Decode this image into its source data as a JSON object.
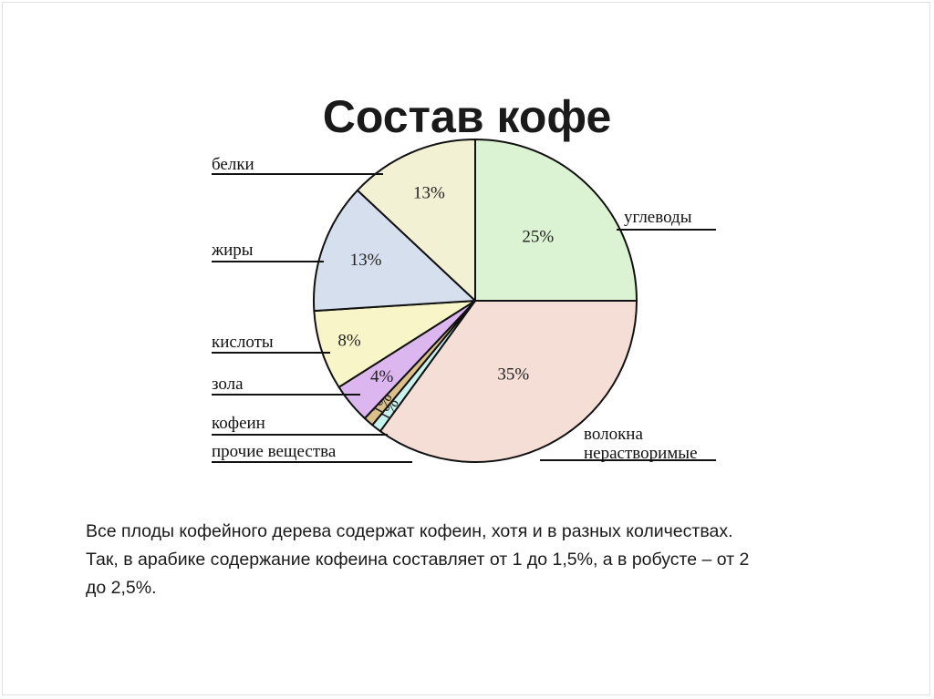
{
  "title": "Состав кофе",
  "chart_data": {
    "type": "pie",
    "title": "",
    "categories": [
      "углеводы",
      "волокна нерастворимые",
      "прочие вещества",
      "кофеин",
      "зола",
      "кислоты",
      "жиры",
      "белки"
    ],
    "values": [
      25,
      35,
      1,
      1,
      4,
      8,
      13,
      13
    ],
    "value_labels": [
      "25%",
      "35%",
      "1%",
      "1%",
      "4%",
      "8%",
      "13%",
      "13%"
    ],
    "label_lines": [
      [
        "углеводы"
      ],
      [
        "волокна",
        "нерастворимые"
      ],
      [
        "прочие вещества"
      ],
      [
        "кофеин"
      ],
      [
        "зола"
      ],
      [
        "кислоты"
      ],
      [
        "жиры"
      ],
      [
        "белки"
      ]
    ],
    "colors": [
      "#dcf3d3",
      "#f5ded5",
      "#c8f2ee",
      "#dcc089",
      "#dcb6ef",
      "#f8f6c8",
      "#d6dfee",
      "#f3f1d3"
    ],
    "start_angle_deg": 0,
    "direction": "clockwise",
    "legend": "none"
  },
  "description": {
    "lines": [
      "Все плоды кофейного дерева содержат кофеин, хотя и в разных количествах.",
      "Так, в арабике содержание кофеина составляет от 1 до 1,5%, а в робусте – от 2",
      "до 2,5%."
    ]
  }
}
